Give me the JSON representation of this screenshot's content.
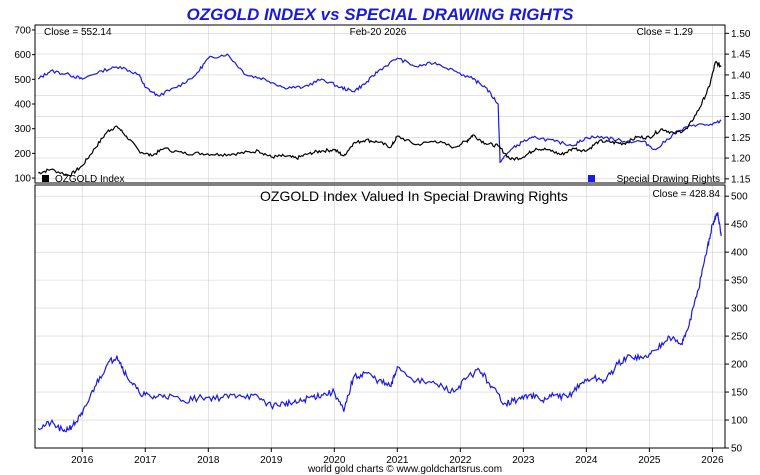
{
  "title": "OZGOLD INDEX vs SPECIAL DRAWING RIGHTS",
  "footer": "world gold charts © www.goldchartsrus.com",
  "colors": {
    "title": "#1a1adc",
    "gold": "#000000",
    "sdr": "#1a1ae6",
    "grid": "#d0d0d0",
    "frame": "#000000"
  },
  "chart_data": [
    {
      "type": "line",
      "name": "top-panel",
      "date_label": "Feb-20  2026",
      "left_close_label": "Close = 552.14",
      "right_close_label": "Close = 1.29",
      "y_left": {
        "range": [
          80,
          720
        ],
        "ticks": [
          100,
          200,
          300,
          400,
          500,
          600,
          700
        ]
      },
      "y_right": {
        "range": [
          1.14,
          1.52
        ],
        "ticks": [
          1.15,
          1.2,
          1.25,
          1.3,
          1.35,
          1.4,
          1.45,
          1.5
        ],
        "labels": [
          "1.15",
          "1.20",
          "1.25",
          "1.30",
          "1.35",
          "1.40",
          "1.45",
          "1.50"
        ]
      },
      "legend": {
        "left": "OZGOLD Index",
        "right": "Special Drawing Rights"
      },
      "series": [
        {
          "name": "OZGOLD Index",
          "axis": "left",
          "x": [
            2015.3,
            2015.5,
            2015.8,
            2016.0,
            2016.2,
            2016.4,
            2016.55,
            2016.7,
            2016.9,
            2017.1,
            2017.3,
            2017.6,
            2017.9,
            2018.2,
            2018.5,
            2018.8,
            2019.0,
            2019.2,
            2019.4,
            2019.6,
            2019.8,
            2020.0,
            2020.15,
            2020.3,
            2020.5,
            2020.7,
            2020.9,
            2021.0,
            2021.3,
            2021.6,
            2021.9,
            2022.1,
            2022.2,
            2022.4,
            2022.6,
            2022.8,
            2023.0,
            2023.2,
            2023.4,
            2023.6,
            2023.8,
            2024.0,
            2024.2,
            2024.4,
            2024.6,
            2024.8,
            2025.0,
            2025.2,
            2025.4,
            2025.6,
            2025.8,
            2025.95,
            2026.05,
            2026.14
          ],
          "values": [
            120,
            135,
            110,
            150,
            220,
            290,
            310,
            270,
            210,
            190,
            220,
            200,
            200,
            195,
            200,
            210,
            185,
            190,
            180,
            200,
            210,
            215,
            190,
            240,
            255,
            245,
            225,
            270,
            235,
            250,
            225,
            250,
            275,
            240,
            230,
            175,
            185,
            220,
            215,
            195,
            220,
            210,
            250,
            245,
            240,
            265,
            265,
            300,
            280,
            300,
            385,
            470,
            570,
            552
          ]
        },
        {
          "name": "Special Drawing Rights",
          "axis": "right",
          "x": [
            2015.3,
            2015.5,
            2015.8,
            2016.0,
            2016.3,
            2016.6,
            2016.9,
            2017.0,
            2017.2,
            2017.5,
            2017.8,
            2018.0,
            2018.3,
            2018.6,
            2018.9,
            2019.2,
            2019.5,
            2019.8,
            2020.1,
            2020.3,
            2020.5,
            2020.7,
            2021.0,
            2021.3,
            2021.6,
            2021.9,
            2022.2,
            2022.4,
            2022.6,
            2022.63,
            2022.8,
            2023.0,
            2023.2,
            2023.5,
            2023.8,
            2024.0,
            2024.3,
            2024.6,
            2024.9,
            2025.1,
            2025.4,
            2025.7,
            2026.0,
            2026.14
          ],
          "values": [
            1.39,
            1.41,
            1.4,
            1.39,
            1.41,
            1.42,
            1.4,
            1.37,
            1.35,
            1.37,
            1.4,
            1.44,
            1.45,
            1.4,
            1.39,
            1.37,
            1.37,
            1.39,
            1.37,
            1.36,
            1.38,
            1.41,
            1.44,
            1.42,
            1.43,
            1.41,
            1.39,
            1.37,
            1.33,
            1.19,
            1.22,
            1.24,
            1.25,
            1.24,
            1.23,
            1.25,
            1.25,
            1.24,
            1.24,
            1.22,
            1.26,
            1.28,
            1.28,
            1.29
          ]
        }
      ]
    },
    {
      "type": "line",
      "name": "bottom-panel",
      "title": "OZGOLD Index Valued In Special Drawing Rights",
      "close_label": "Close = 428.84",
      "y_right": {
        "range": [
          50,
          520
        ],
        "ticks": [
          50,
          100,
          150,
          200,
          250,
          300,
          350,
          400,
          450,
          500
        ]
      },
      "x_axis": {
        "range": [
          2015.25,
          2026.2
        ],
        "ticks": [
          2016,
          2017,
          2018,
          2019,
          2020,
          2021,
          2022,
          2023,
          2024,
          2025,
          2026
        ],
        "labels": [
          "2016",
          "2017",
          "2018",
          "2019",
          "2020",
          "2021",
          "2022",
          "2023",
          "2024",
          "2025",
          "2026"
        ]
      },
      "series": [
        {
          "name": "OZGOLD Index Valued In SDR",
          "x": [
            2015.3,
            2015.5,
            2015.7,
            2015.85,
            2016.0,
            2016.2,
            2016.4,
            2016.55,
            2016.7,
            2016.9,
            2017.1,
            2017.3,
            2017.6,
            2017.9,
            2018.2,
            2018.5,
            2018.8,
            2019.0,
            2019.2,
            2019.4,
            2019.6,
            2019.8,
            2020.0,
            2020.15,
            2020.3,
            2020.5,
            2020.7,
            2020.9,
            2021.0,
            2021.3,
            2021.6,
            2021.9,
            2022.1,
            2022.3,
            2022.5,
            2022.7,
            2022.9,
            2023.1,
            2023.3,
            2023.5,
            2023.7,
            2023.9,
            2024.1,
            2024.3,
            2024.5,
            2024.7,
            2024.9,
            2025.1,
            2025.3,
            2025.5,
            2025.6,
            2025.75,
            2025.9,
            2026.0,
            2026.08,
            2026.14
          ],
          "values": [
            85,
            95,
            80,
            90,
            110,
            160,
            200,
            215,
            180,
            150,
            140,
            145,
            135,
            140,
            140,
            145,
            140,
            125,
            130,
            130,
            140,
            145,
            150,
            115,
            175,
            185,
            170,
            160,
            195,
            170,
            165,
            150,
            175,
            190,
            160,
            130,
            135,
            145,
            135,
            145,
            140,
            165,
            175,
            170,
            200,
            215,
            210,
            225,
            250,
            235,
            260,
            320,
            395,
            450,
            470,
            429
          ]
        }
      ]
    }
  ]
}
